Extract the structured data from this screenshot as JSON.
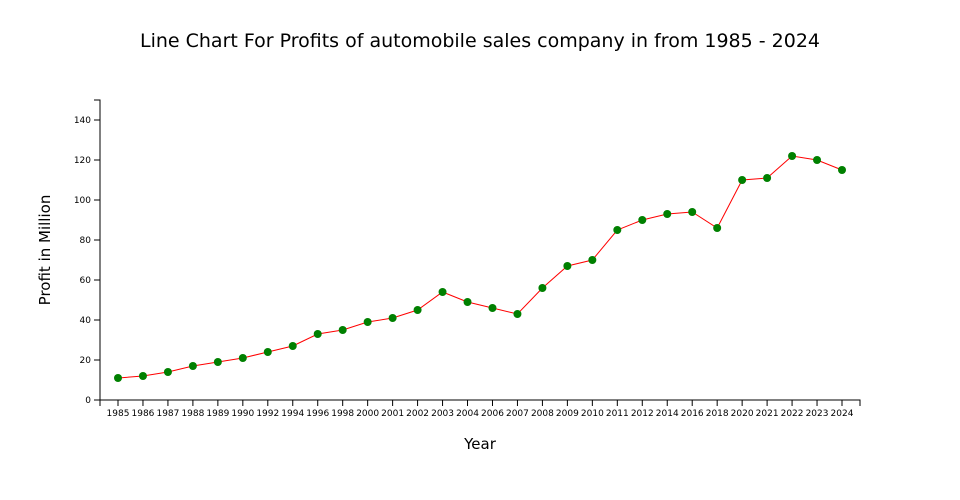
{
  "chart_data": {
    "type": "line",
    "title": "Line Chart For Profits of automobile sales company in from 1985 - 2024",
    "xlabel": "Year",
    "ylabel": "Profit in Million",
    "ylim": [
      0,
      150
    ],
    "yticks": [
      0,
      20,
      40,
      60,
      80,
      100,
      120,
      140
    ],
    "grid": false,
    "categories": [
      "1985",
      "1986",
      "1987",
      "1988",
      "1989",
      "1990",
      "1992",
      "1994",
      "1996",
      "1998",
      "2000",
      "2001",
      "2002",
      "2003",
      "2004",
      "2006",
      "2007",
      "2008",
      "2009",
      "2010",
      "2011",
      "2012",
      "2014",
      "2016",
      "2018",
      "2020",
      "2021",
      "2022",
      "2023",
      "2024"
    ],
    "series": [
      {
        "name": "Profit",
        "values": [
          11,
          12,
          14,
          17,
          19,
          21,
          24,
          27,
          33,
          35,
          39,
          41,
          45,
          54,
          49,
          46,
          43,
          56,
          67,
          70,
          85,
          90,
          93,
          94,
          86,
          110,
          111,
          122,
          120,
          115
        ],
        "line_color": "#ff0000",
        "marker_color": "#008000"
      }
    ]
  }
}
